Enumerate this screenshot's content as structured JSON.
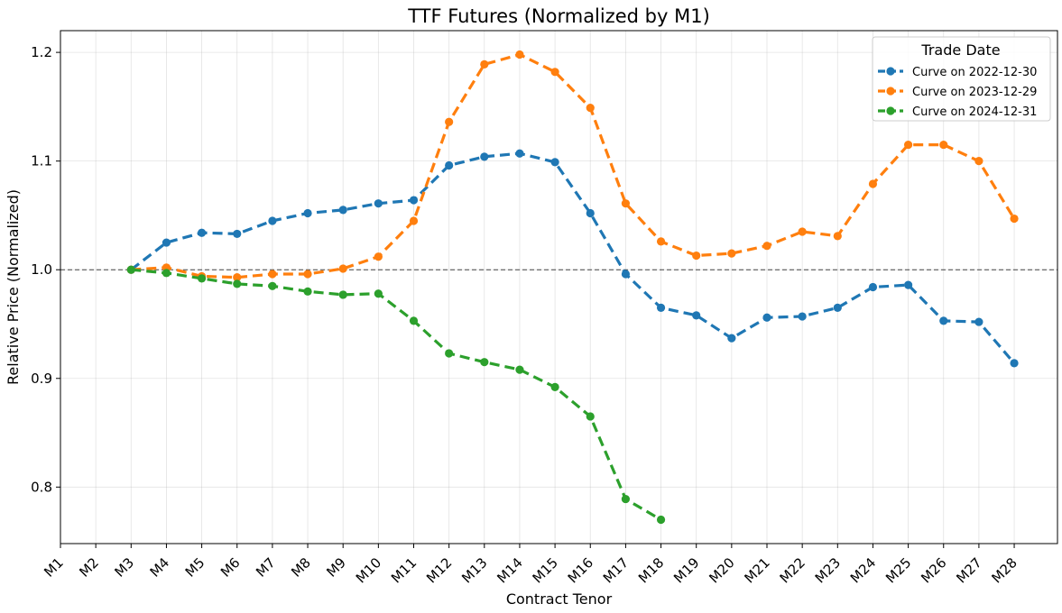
{
  "chart_data": {
    "type": "line",
    "title": "TTF Futures (Normalized by M1)",
    "xlabel": "Contract Tenor",
    "ylabel": "Relative Price (Normalized)",
    "categories": [
      "M1",
      "M2",
      "M3",
      "M4",
      "M5",
      "M6",
      "M7",
      "M8",
      "M9",
      "M10",
      "M11",
      "M12",
      "M13",
      "M14",
      "M15",
      "M16",
      "M17",
      "M18",
      "M19",
      "M20",
      "M21",
      "M22",
      "M23",
      "M24",
      "M25",
      "M26",
      "M27",
      "M28"
    ],
    "ylim": [
      0.748,
      1.22
    ],
    "yticks": [
      0.8,
      0.9,
      1.0,
      1.1,
      1.2
    ],
    "ytick_labels": [
      "0.8",
      "0.9",
      "1.0",
      "1.1",
      "1.2"
    ],
    "reference_line": 1.0,
    "grid": true,
    "legend_title": "Trade Date",
    "legend_position": "top-right",
    "series": [
      {
        "name": "Curve on 2022-12-30",
        "color": "#1f77b4",
        "values": [
          null,
          null,
          1.0,
          1.025,
          1.034,
          1.033,
          1.045,
          1.052,
          1.055,
          1.061,
          1.064,
          1.096,
          1.104,
          1.107,
          1.099,
          1.052,
          0.996,
          0.965,
          0.958,
          0.937,
          0.956,
          0.957,
          0.965,
          0.984,
          0.986,
          0.953,
          0.952,
          0.914
        ]
      },
      {
        "name": "Curve on 2023-12-29",
        "color": "#ff7f0e",
        "values": [
          null,
          null,
          1.0,
          1.002,
          0.994,
          0.993,
          0.996,
          0.996,
          1.001,
          1.012,
          1.045,
          1.136,
          1.189,
          1.198,
          1.182,
          1.149,
          1.061,
          1.026,
          1.013,
          1.015,
          1.022,
          1.035,
          1.031,
          1.079,
          1.115,
          1.115,
          1.1,
          1.047
        ]
      },
      {
        "name": "Curve on 2024-12-31",
        "color": "#2ca02c",
        "values": [
          null,
          null,
          1.0,
          0.997,
          0.992,
          0.987,
          0.985,
          0.98,
          0.977,
          0.978,
          0.953,
          0.923,
          0.915,
          0.908,
          0.892,
          0.865,
          0.789,
          0.77,
          null,
          null,
          null,
          null,
          null,
          null,
          null,
          null,
          null,
          null
        ]
      }
    ]
  }
}
